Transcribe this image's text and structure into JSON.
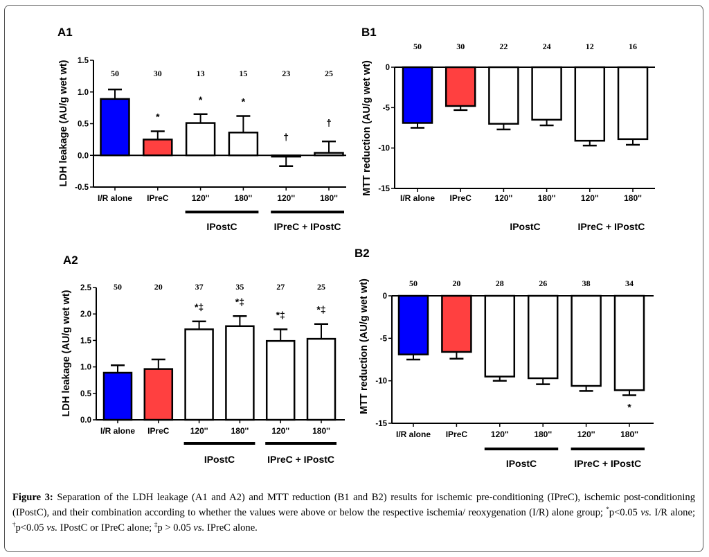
{
  "colors": {
    "ir_alone": "#0000ff",
    "iprec": "#ff4040",
    "other": "#ffffff",
    "stroke": "#000000"
  },
  "chart_data": [
    {
      "id": "A1",
      "type": "bar",
      "panel_label": "A1",
      "ylabel": "LDH leakage (AU/g wet wt)",
      "xlabel": "",
      "ylim": [
        -0.5,
        1.5
      ],
      "yticks": [
        -0.5,
        0.0,
        0.5,
        1.0,
        1.5
      ],
      "ytick_labels": [
        "-0.5",
        "0.0",
        "0.5",
        "1.0",
        "1.5"
      ],
      "categories": [
        "I/R alone",
        "IPreC",
        "120''",
        "180''",
        "120''",
        "180''"
      ],
      "values": [
        0.89,
        0.25,
        0.51,
        0.36,
        -0.02,
        0.04
      ],
      "error_ends": [
        1.04,
        0.38,
        0.65,
        0.62,
        -0.17,
        0.22
      ],
      "n": [
        "50",
        "30",
        "13",
        "15",
        "23",
        "25"
      ],
      "significance": [
        "",
        "*",
        "*",
        "*",
        "†",
        "†"
      ],
      "fill_keys": [
        "ir_alone",
        "iprec",
        "other",
        "other",
        "other",
        "other"
      ],
      "groups": [
        {
          "label": "IPostC",
          "from": 2,
          "to": 3,
          "bar": true
        },
        {
          "label": "IPreC + IPostC",
          "from": 4,
          "to": 5,
          "bar": true
        }
      ],
      "grid": false
    },
    {
      "id": "B1",
      "type": "bar",
      "panel_label": "B1",
      "ylabel": "MTT reduction (AU/g wet wt)",
      "xlabel": "",
      "ylim": [
        -15,
        0
      ],
      "yticks": [
        -15,
        -10,
        -5,
        0
      ],
      "ytick_labels": [
        "-15",
        "-10",
        "-5",
        "0"
      ],
      "categories": [
        "I/R alone",
        "IPreC",
        "120''",
        "180''",
        "120''",
        "180''"
      ],
      "values": [
        -6.9,
        -4.8,
        -7.0,
        -6.5,
        -9.1,
        -8.9
      ],
      "error_ends": [
        -7.5,
        -5.3,
        -7.7,
        -7.2,
        -9.7,
        -9.6
      ],
      "n": [
        "50",
        "30",
        "22",
        "24",
        "12",
        "16"
      ],
      "significance": [
        "",
        "",
        "",
        "",
        "",
        ""
      ],
      "fill_keys": [
        "ir_alone",
        "iprec",
        "other",
        "other",
        "other",
        "other"
      ],
      "groups": [
        {
          "label": "IPostC",
          "from": 2,
          "to": 3,
          "bar": false
        },
        {
          "label": "IPreC + IPostC",
          "from": 4,
          "to": 5,
          "bar": false
        }
      ],
      "grid": false
    },
    {
      "id": "A2",
      "type": "bar",
      "panel_label": "A2",
      "ylabel": "LDH leakage (AU/g wet wt)",
      "xlabel": "",
      "ylim": [
        0.0,
        2.5
      ],
      "yticks": [
        0.0,
        0.5,
        1.0,
        1.5,
        2.0,
        2.5
      ],
      "ytick_labels": [
        "0.0",
        "0.5",
        "1.0",
        "1.5",
        "2.0",
        "2.5"
      ],
      "categories": [
        "I/R alone",
        "IPreC",
        "120''",
        "180''",
        "120''",
        "180''"
      ],
      "values": [
        0.89,
        0.96,
        1.71,
        1.77,
        1.49,
        1.53
      ],
      "error_ends": [
        1.03,
        1.14,
        1.86,
        1.96,
        1.71,
        1.81
      ],
      "n": [
        "50",
        "20",
        "37",
        "35",
        "27",
        "25"
      ],
      "significance": [
        "",
        "",
        "*‡",
        "*‡",
        "*‡",
        "*‡"
      ],
      "fill_keys": [
        "ir_alone",
        "iprec",
        "other",
        "other",
        "other",
        "other"
      ],
      "groups": [
        {
          "label": "IPostC",
          "from": 2,
          "to": 3,
          "bar": true
        },
        {
          "label": "IPreC + IPostC",
          "from": 4,
          "to": 5,
          "bar": true
        }
      ],
      "grid": false
    },
    {
      "id": "B2",
      "type": "bar",
      "panel_label": "B2",
      "ylabel": "MTT reduction (AU/g wet wt)",
      "xlabel": "",
      "ylim": [
        -15,
        0
      ],
      "yticks": [
        -15,
        -10,
        -5,
        0
      ],
      "ytick_labels": [
        "-15",
        "-10",
        "-5",
        "0"
      ],
      "categories": [
        "I/R alone",
        "IPreC",
        "120''",
        "180''",
        "120''",
        "180''"
      ],
      "values": [
        -6.9,
        -6.6,
        -9.5,
        -9.7,
        -10.6,
        -11.1
      ],
      "error_ends": [
        -7.5,
        -7.4,
        -10.0,
        -10.4,
        -11.2,
        -11.7
      ],
      "n": [
        "50",
        "20",
        "28",
        "26",
        "38",
        "34"
      ],
      "significance": [
        "",
        "",
        "",
        "",
        "",
        "*"
      ],
      "fill_keys": [
        "ir_alone",
        "iprec",
        "other",
        "other",
        "other",
        "other"
      ],
      "groups": [
        {
          "label": "IPostC",
          "from": 2,
          "to": 3,
          "bar": true
        },
        {
          "label": "IPreC + IPostC",
          "from": 4,
          "to": 5,
          "bar": true
        }
      ],
      "grid": false
    }
  ],
  "caption": {
    "figure_label": "Figure 3:",
    "text_1": " Separation of the LDH leakage (A1 and A2) and MTT reduction (B1 and B2) results for ischemic pre-conditioning (IPreC), ischemic post-conditioning (IPostC), and their combination according to whether the values were above or below the respective ischemia/ reoxygenation (I/R) alone group; ",
    "sup_1": "*",
    "text_2": "p<0.05 ",
    "vs_1": "vs.",
    "text_3": " I/R alone; ",
    "sup_2": "†",
    "text_4": "p<0.05 ",
    "vs_2": "vs.",
    "text_5": " IPostC or IPreC alone; ",
    "sup_3": "‡",
    "text_6": "p > 0.05 ",
    "vs_3": "vs.",
    "text_7": " IPreC alone."
  }
}
